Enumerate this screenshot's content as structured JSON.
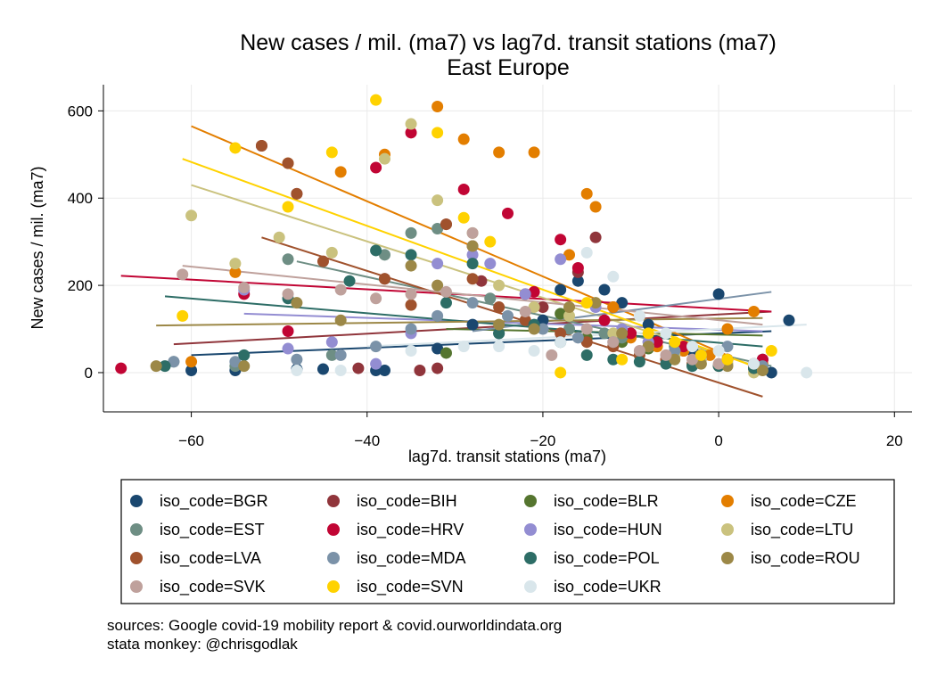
{
  "chart_data": {
    "type": "scatter",
    "title": "New cases / mil. (ma7) vs lag7d. transit stations (ma7)",
    "subtitle": "East Europe",
    "xlabel": "lag7d. transit stations (ma7)",
    "ylabel": "New cases / mil. (ma7)",
    "xlim": [
      -70,
      22
    ],
    "ylim": [
      -90,
      660
    ],
    "xticks": [
      -60,
      -40,
      -20,
      0,
      20
    ],
    "yticks": [
      0,
      200,
      400,
      600
    ],
    "grid": true,
    "legend_placement": "bottom",
    "notes": [
      "sources: Google covid-19 mobility report & covid.ourworldindata.org",
      "stata monkey: @chrisgodlak"
    ],
    "series": [
      {
        "name": "iso_code=BGR",
        "color": "#1a476f",
        "points": [
          [
            -60,
            5
          ],
          [
            -55,
            5
          ],
          [
            -48,
            8
          ],
          [
            -45,
            8
          ],
          [
            -39,
            5
          ],
          [
            -38,
            5
          ],
          [
            -32,
            55
          ],
          [
            -28,
            110
          ],
          [
            -25,
            90
          ],
          [
            -20,
            120
          ],
          [
            -18,
            190
          ],
          [
            -16,
            210
          ],
          [
            -13,
            190
          ],
          [
            -11,
            160
          ],
          [
            -8,
            110
          ],
          [
            -5,
            60
          ],
          [
            -3,
            50
          ],
          [
            0,
            180
          ],
          [
            5,
            30
          ],
          [
            6,
            0
          ],
          [
            8,
            120
          ]
        ],
        "fit": [
          [
            -60,
            40
          ],
          [
            6,
            95
          ]
        ]
      },
      {
        "name": "iso_code=BIH",
        "color": "#90353b",
        "points": [
          [
            -52,
            520
          ],
          [
            -48,
            410
          ],
          [
            -41,
            10
          ],
          [
            -38,
            215
          ],
          [
            -34,
            5
          ],
          [
            -32,
            10
          ],
          [
            -31,
            340
          ],
          [
            -28,
            290
          ],
          [
            -27,
            210
          ],
          [
            -22,
            180
          ],
          [
            -20,
            150
          ],
          [
            -16,
            230
          ],
          [
            -14,
            310
          ],
          [
            -12,
            150
          ],
          [
            -10,
            90
          ],
          [
            -7,
            70
          ],
          [
            -4,
            50
          ],
          [
            -2,
            40
          ],
          [
            1,
            30
          ],
          [
            4,
            15
          ]
        ],
        "fit": [
          [
            -62,
            65
          ],
          [
            6,
            140
          ]
        ]
      },
      {
        "name": "iso_code=BLR",
        "color": "#55752f",
        "points": [
          [
            -31,
            45
          ],
          [
            -18,
            135
          ],
          [
            -15,
            80
          ],
          [
            -11,
            70
          ],
          [
            -8,
            55
          ],
          [
            -5,
            45
          ],
          [
            -2,
            40
          ],
          [
            1,
            30
          ],
          [
            4,
            20
          ]
        ],
        "fit": [
          [
            -31,
            100
          ],
          [
            5,
            85
          ]
        ]
      },
      {
        "name": "iso_code=CZE",
        "color": "#e37e00",
        "points": [
          [
            -60,
            25
          ],
          [
            -55,
            230
          ],
          [
            -49,
            480
          ],
          [
            -43,
            460
          ],
          [
            -38,
            500
          ],
          [
            -32,
            610
          ],
          [
            -29,
            535
          ],
          [
            -25,
            505
          ],
          [
            -21,
            505
          ],
          [
            -15,
            410
          ],
          [
            -14,
            380
          ],
          [
            -17,
            270
          ],
          [
            -12,
            150
          ],
          [
            -10,
            80
          ],
          [
            -7,
            60
          ],
          [
            -4,
            50
          ],
          [
            -1,
            40
          ],
          [
            1,
            100
          ],
          [
            4,
            140
          ],
          [
            5,
            20
          ]
        ],
        "fit": [
          [
            -60,
            565
          ],
          [
            5,
            5
          ]
        ]
      },
      {
        "name": "iso_code=EST",
        "color": "#6e8e84",
        "points": [
          [
            -62,
            25
          ],
          [
            -55,
            15
          ],
          [
            -49,
            260
          ],
          [
            -44,
            40
          ],
          [
            -38,
            270
          ],
          [
            -35,
            320
          ],
          [
            -32,
            330
          ],
          [
            -26,
            170
          ],
          [
            -22,
            120
          ],
          [
            -17,
            100
          ],
          [
            -13,
            90
          ],
          [
            -11,
            80
          ],
          [
            -8,
            70
          ],
          [
            -5,
            60
          ],
          [
            -2,
            40
          ],
          [
            1,
            30
          ],
          [
            4,
            20
          ]
        ],
        "fit": [
          [
            -48,
            255
          ],
          [
            6,
            15
          ]
        ]
      },
      {
        "name": "iso_code=HRV",
        "color": "#c10534",
        "points": [
          [
            -68,
            10
          ],
          [
            -54,
            180
          ],
          [
            -49,
            95
          ],
          [
            -39,
            470
          ],
          [
            -35,
            550
          ],
          [
            -29,
            420
          ],
          [
            -24,
            365
          ],
          [
            -21,
            185
          ],
          [
            -18,
            305
          ],
          [
            -16,
            240
          ],
          [
            -13,
            120
          ],
          [
            -10,
            90
          ],
          [
            -7,
            70
          ],
          [
            -4,
            60
          ],
          [
            -2,
            40
          ],
          [
            1,
            30
          ],
          [
            5,
            30
          ]
        ],
        "fit": [
          [
            -68,
            222
          ],
          [
            6,
            140
          ]
        ]
      },
      {
        "name": "iso_code=HUN",
        "color": "#938dd2",
        "points": [
          [
            -54,
            190
          ],
          [
            -49,
            55
          ],
          [
            -44,
            70
          ],
          [
            -39,
            20
          ],
          [
            -35,
            90
          ],
          [
            -32,
            250
          ],
          [
            -28,
            270
          ],
          [
            -26,
            250
          ],
          [
            -22,
            180
          ],
          [
            -18,
            260
          ],
          [
            -14,
            150
          ],
          [
            -11,
            100
          ],
          [
            -8,
            70
          ],
          [
            -5,
            50
          ],
          [
            -2,
            30
          ],
          [
            1,
            20
          ]
        ],
        "fit": [
          [
            -54,
            135
          ],
          [
            5,
            95
          ]
        ]
      },
      {
        "name": "iso_code=LTU",
        "color": "#cac27e",
        "points": [
          [
            -60,
            360
          ],
          [
            -55,
            250
          ],
          [
            -50,
            310
          ],
          [
            -44,
            275
          ],
          [
            -38,
            490
          ],
          [
            -35,
            570
          ],
          [
            -32,
            395
          ],
          [
            -28,
            320
          ],
          [
            -25,
            200
          ],
          [
            -21,
            150
          ],
          [
            -17,
            130
          ],
          [
            -12,
            90
          ],
          [
            -8,
            60
          ],
          [
            -5,
            40
          ],
          [
            -2,
            30
          ],
          [
            1,
            20
          ],
          [
            4,
            0
          ]
        ],
        "fit": [
          [
            -60,
            430
          ],
          [
            5,
            10
          ]
        ]
      },
      {
        "name": "iso_code=LVA",
        "color": "#a0522d",
        "points": [
          [
            -52,
            520
          ],
          [
            -49,
            480
          ],
          [
            -48,
            410
          ],
          [
            -45,
            255
          ],
          [
            -38,
            215
          ],
          [
            -35,
            155
          ],
          [
            -31,
            340
          ],
          [
            -28,
            215
          ],
          [
            -25,
            150
          ],
          [
            -22,
            120
          ],
          [
            -18,
            90
          ],
          [
            -15,
            70
          ],
          [
            -12,
            60
          ],
          [
            -9,
            40
          ],
          [
            -6,
            30
          ],
          [
            -3,
            20
          ],
          [
            0,
            15
          ],
          [
            4,
            10
          ]
        ],
        "fit": [
          [
            -52,
            310
          ],
          [
            5,
            -55
          ]
        ]
      },
      {
        "name": "iso_code=MDA",
        "color": "#7b92a8",
        "points": [
          [
            -62,
            25
          ],
          [
            -55,
            25
          ],
          [
            -48,
            30
          ],
          [
            -43,
            40
          ],
          [
            -39,
            60
          ],
          [
            -35,
            100
          ],
          [
            -32,
            130
          ],
          [
            -28,
            160
          ],
          [
            -24,
            130
          ],
          [
            -20,
            100
          ],
          [
            -16,
            80
          ],
          [
            -12,
            70
          ],
          [
            -8,
            60
          ],
          [
            -5,
            50
          ],
          [
            -2,
            40
          ],
          [
            1,
            60
          ],
          [
            5,
            15
          ]
        ],
        "fit": [
          [
            -28,
            95
          ],
          [
            6,
            185
          ]
        ]
      },
      {
        "name": "iso_code=POL",
        "color": "#2d6d66",
        "points": [
          [
            -63,
            15
          ],
          [
            -54,
            40
          ],
          [
            -49,
            170
          ],
          [
            -42,
            210
          ],
          [
            -39,
            280
          ],
          [
            -35,
            270
          ],
          [
            -31,
            160
          ],
          [
            -28,
            250
          ],
          [
            -25,
            90
          ],
          [
            -21,
            110
          ],
          [
            -18,
            70
          ],
          [
            -15,
            40
          ],
          [
            -12,
            30
          ],
          [
            -9,
            25
          ],
          [
            -6,
            20
          ],
          [
            -3,
            15
          ],
          [
            0,
            15
          ],
          [
            4,
            10
          ]
        ],
        "fit": [
          [
            -63,
            175
          ],
          [
            5,
            60
          ]
        ]
      },
      {
        "name": "iso_code=ROU",
        "color": "#9c8847",
        "points": [
          [
            -64,
            15
          ],
          [
            -54,
            15
          ],
          [
            -48,
            160
          ],
          [
            -43,
            120
          ],
          [
            -35,
            245
          ],
          [
            -32,
            200
          ],
          [
            -28,
            290
          ],
          [
            -25,
            110
          ],
          [
            -21,
            100
          ],
          [
            -17,
            150
          ],
          [
            -14,
            160
          ],
          [
            -11,
            90
          ],
          [
            -8,
            60
          ],
          [
            -5,
            30
          ],
          [
            -2,
            20
          ],
          [
            1,
            15
          ],
          [
            5,
            5
          ]
        ],
        "fit": [
          [
            -64,
            108
          ],
          [
            5,
            125
          ]
        ]
      },
      {
        "name": "iso_code=SVK",
        "color": "#bfa19c",
        "points": [
          [
            -61,
            225
          ],
          [
            -54,
            195
          ],
          [
            -49,
            180
          ],
          [
            -43,
            190
          ],
          [
            -39,
            170
          ],
          [
            -35,
            180
          ],
          [
            -31,
            185
          ],
          [
            -28,
            320
          ],
          [
            -22,
            140
          ],
          [
            -19,
            40
          ],
          [
            -15,
            100
          ],
          [
            -12,
            70
          ],
          [
            -9,
            50
          ],
          [
            -6,
            40
          ],
          [
            -3,
            30
          ],
          [
            0,
            20
          ],
          [
            4,
            20
          ]
        ],
        "fit": [
          [
            -61,
            245
          ],
          [
            5,
            110
          ]
        ]
      },
      {
        "name": "iso_code=SVN",
        "color": "#ffd200",
        "points": [
          [
            -61,
            130
          ],
          [
            -55,
            515
          ],
          [
            -49,
            380
          ],
          [
            -44,
            505
          ],
          [
            -39,
            625
          ],
          [
            -32,
            550
          ],
          [
            -29,
            355
          ],
          [
            -26,
            300
          ],
          [
            -18,
            0
          ],
          [
            -15,
            160
          ],
          [
            -11,
            30
          ],
          [
            -8,
            90
          ],
          [
            -5,
            70
          ],
          [
            -2,
            40
          ],
          [
            1,
            30
          ],
          [
            6,
            50
          ]
        ],
        "fit": [
          [
            -61,
            490
          ],
          [
            6,
            0
          ]
        ]
      },
      {
        "name": "iso_code=UKR",
        "color": "#d9e6eb",
        "points": [
          [
            -48,
            5
          ],
          [
            -43,
            5
          ],
          [
            -35,
            50
          ],
          [
            -29,
            60
          ],
          [
            -25,
            60
          ],
          [
            -21,
            50
          ],
          [
            -18,
            70
          ],
          [
            -15,
            275
          ],
          [
            -12,
            220
          ],
          [
            -9,
            130
          ],
          [
            -6,
            90
          ],
          [
            -3,
            60
          ],
          [
            0,
            50
          ],
          [
            4,
            20
          ],
          [
            10,
            0
          ]
        ],
        "fit": [
          [
            -40,
            60
          ],
          [
            10,
            110
          ]
        ]
      }
    ]
  }
}
